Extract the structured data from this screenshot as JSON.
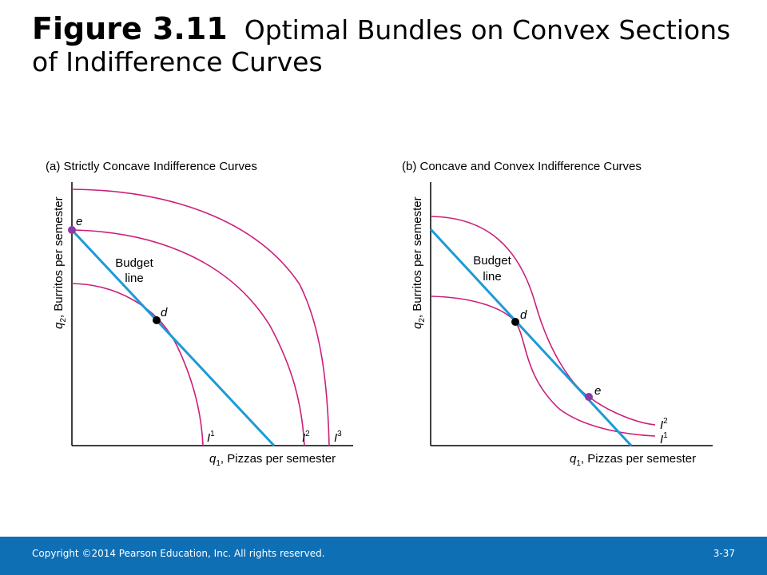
{
  "slide": {
    "figure_label": "Figure 3.11",
    "title": "Optimal Bundles on Convex Sections of Indifference Curves"
  },
  "colors": {
    "curve": "#cc1f7a",
    "budget": "#1c9ad6",
    "point_d": "#000000",
    "point_e": "#8b3aa6",
    "footer": "#0f6fb5"
  },
  "panels": [
    {
      "title": "(a) Strictly Concave Indifference Curves",
      "y_axis": {
        "var": "q",
        "sub": "2",
        "text": ", Burritos per semester"
      },
      "x_axis": {
        "var": "q",
        "sub": "1",
        "text": ", Pizzas per semester"
      },
      "budget_label": [
        "Budget",
        "line"
      ],
      "points": [
        {
          "label": "d"
        },
        {
          "label": "e"
        }
      ],
      "curves": [
        {
          "label": "I",
          "sup": "1"
        },
        {
          "label": "I",
          "sup": "2"
        },
        {
          "label": "I",
          "sup": "3"
        }
      ]
    },
    {
      "title": "(b) Concave and Convex Indifference Curves",
      "y_axis": {
        "var": "q",
        "sub": "2",
        "text": ", Burritos per semester"
      },
      "x_axis": {
        "var": "q",
        "sub": "1",
        "text": ", Pizzas per semester"
      },
      "budget_label": [
        "Budget",
        "line"
      ],
      "points": [
        {
          "label": "d"
        },
        {
          "label": "e"
        }
      ],
      "curves": [
        {
          "label": "I",
          "sup": "2"
        },
        {
          "label": "I",
          "sup": "1"
        }
      ]
    }
  ],
  "footer": {
    "copyright": "Copyright ©2014 Pearson Education, Inc. All rights reserved.",
    "page": "3-37"
  }
}
